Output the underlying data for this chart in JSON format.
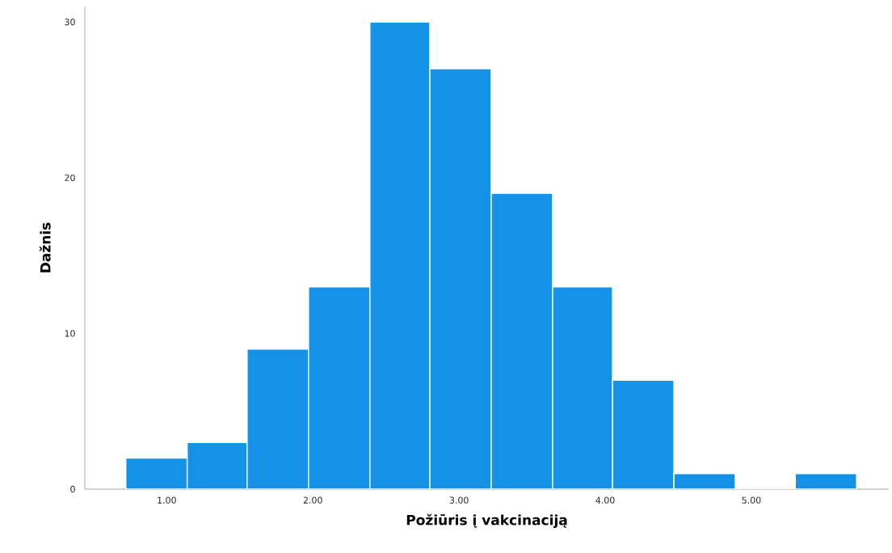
{
  "chart_data": {
    "type": "histogram",
    "xlabel": "Požiūris į vakcinaciją",
    "ylabel": "Dažnis",
    "bins": [
      0.72,
      1.14,
      1.55,
      1.97,
      2.39,
      2.8,
      3.22,
      3.64,
      4.05,
      4.47,
      4.89,
      5.3,
      5.72
    ],
    "values": [
      2,
      3,
      9,
      13,
      30,
      27,
      19,
      13,
      7,
      1,
      0,
      1
    ],
    "color": "#1591e8",
    "xlim": [
      0.44,
      5.94
    ],
    "ylim": [
      0,
      31
    ],
    "xticks": [
      {
        "value": 1,
        "label": "1.00"
      },
      {
        "value": 2,
        "label": "2.00"
      },
      {
        "value": 3,
        "label": "3.00"
      },
      {
        "value": 4,
        "label": "4.00"
      },
      {
        "value": 5,
        "label": "5.00"
      }
    ],
    "yticks": [
      0,
      10,
      20,
      30
    ],
    "grid": false
  }
}
